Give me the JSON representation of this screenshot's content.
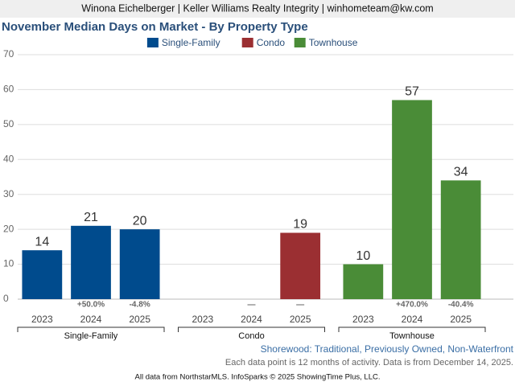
{
  "header": "Winona Eichelberger | Keller Williams Realty Integrity | winhometeam@kw.com",
  "chart_data": {
    "type": "bar",
    "title": "November Median Days on Market - By Property Type",
    "categories": [
      "2023",
      "2024",
      "2025",
      "2023",
      "2024",
      "2025",
      "2023",
      "2024",
      "2025"
    ],
    "group_labels": [
      "Single-Family",
      "Condo",
      "Townhouse"
    ],
    "series": [
      {
        "name": "Single-Family",
        "color": "#004b8d",
        "values": [
          14,
          21,
          20,
          null,
          null,
          null,
          null,
          null,
          null
        ]
      },
      {
        "name": "Condo",
        "color": "#9b2f32",
        "values": [
          null,
          null,
          null,
          null,
          null,
          19,
          null,
          null,
          null
        ]
      },
      {
        "name": "Townhouse",
        "color": "#4a8c37",
        "values": [
          null,
          null,
          null,
          null,
          null,
          null,
          10,
          57,
          34
        ]
      }
    ],
    "annotations": [
      null,
      "+50.0%",
      "-4.8%",
      null,
      "—",
      "—",
      null,
      "+470.0%",
      "-40.4%"
    ],
    "ylim": [
      0,
      70
    ],
    "yticks": [
      0,
      10,
      20,
      30,
      40,
      50,
      60,
      70
    ],
    "grid": true,
    "notes": [
      "Shorewood: Traditional, Previously Owned, Non-Waterfront",
      "Each data point is 12 months of activity. Data is from December 14, 2025."
    ],
    "source": "All data from NorthstarMLS. InfoSparks © 2025 ShowingTime Plus, LLC."
  }
}
